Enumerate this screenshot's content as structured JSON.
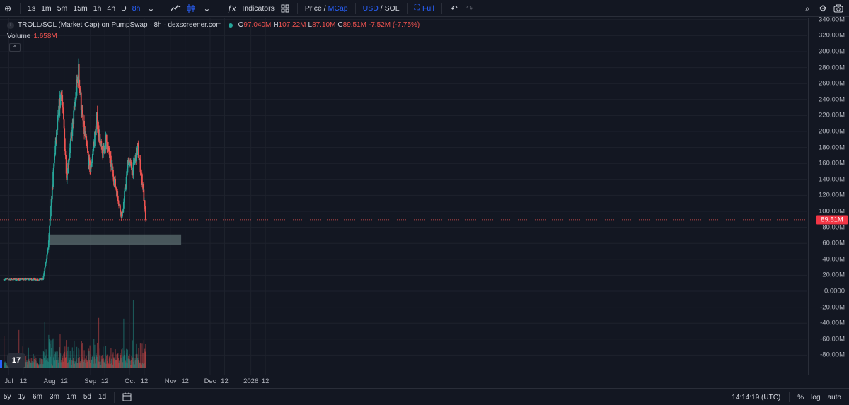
{
  "toolbar": {
    "intervals": [
      "1s",
      "1m",
      "5m",
      "15m",
      "1h",
      "4h",
      "D",
      "8h"
    ],
    "active_interval": "8h",
    "indicators_label": "Indicators",
    "price_label": "Price",
    "slash": "/",
    "mcap_label": "MCap",
    "usd_label": "USD",
    "sol_label": "SOL",
    "full_label": "Full"
  },
  "legend": {
    "symbol_title": "TROLL/SOL (Market Cap) on PumpSwap · 8h · dexscreener.com",
    "open_key": "O",
    "open": "97.040M",
    "high_key": "H",
    "high": "107.22M",
    "low_key": "L",
    "low": "87.10M",
    "close_key": "C",
    "close": "89.51M",
    "change": "-7.52M (-7.75%)",
    "volume_label": "Volume",
    "volume_value": "1.658M"
  },
  "colors": {
    "background": "#131722",
    "up": "#26a69a",
    "down": "#ef5350",
    "accent": "#2962ff",
    "zone": "#5d6f72",
    "last_price": "#f23645"
  },
  "price_axis": {
    "labels": [
      "340.00M",
      "320.00M",
      "300.00M",
      "280.00M",
      "260.00M",
      "240.00M",
      "220.00M",
      "200.00M",
      "180.00M",
      "160.00M",
      "140.00M",
      "120.00M",
      "100.00M",
      "80.00M",
      "60.00M",
      "40.00M",
      "20.00M",
      "0.0000",
      "-20.00M",
      "-40.00M",
      "-60.00M",
      "-80.00M"
    ],
    "last_price_label": "89.51M"
  },
  "time_axis": {
    "labels": [
      "Jul",
      "12",
      "Aug",
      "12",
      "Sep",
      "12",
      "Oct",
      "12",
      "Nov",
      "12",
      "Dec",
      "12",
      "2026",
      "12"
    ]
  },
  "bottombar": {
    "ranges": [
      "5y",
      "1y",
      "6m",
      "3m",
      "1m",
      "5d",
      "1d"
    ],
    "clock": "14:14:19 (UTC)",
    "percent_label": "%",
    "log_label": "log",
    "auto_label": "auto"
  },
  "chart_data": {
    "type": "candlestick",
    "unit": "M (market cap, USD)",
    "ylim": [
      -90,
      345
    ],
    "period": "8h",
    "support_zone": {
      "from_date": "Jul 31",
      "to_date": "Nov 9",
      "low": 58,
      "high": 71
    },
    "last_price": 89.51,
    "anchors": [
      {
        "date": "Jun 27",
        "close": 15
      },
      {
        "date": "Jul 27",
        "close": 15
      },
      {
        "date": "Jul 31",
        "close": 55
      },
      {
        "date": "Aug 5",
        "close": 175
      },
      {
        "date": "Aug 10",
        "close": 255
      },
      {
        "date": "Aug 14",
        "close": 145
      },
      {
        "date": "Aug 18",
        "close": 200
      },
      {
        "date": "Aug 23",
        "close": 275
      },
      {
        "date": "Aug 26",
        "close": 215
      },
      {
        "date": "Sep 1",
        "close": 150
      },
      {
        "date": "Sep 6",
        "close": 215
      },
      {
        "date": "Sep 10",
        "close": 170
      },
      {
        "date": "Sep 13",
        "close": 190
      },
      {
        "date": "Sep 16",
        "close": 165
      },
      {
        "date": "Sep 21",
        "close": 125
      },
      {
        "date": "Sep 25",
        "close": 92
      },
      {
        "date": "Sep 30",
        "close": 165
      },
      {
        "date": "Oct 3",
        "close": 150
      },
      {
        "date": "Oct 7",
        "close": 180
      },
      {
        "date": "Oct 11",
        "close": 130
      },
      {
        "date": "Oct 13",
        "close": 89.51
      }
    ]
  }
}
